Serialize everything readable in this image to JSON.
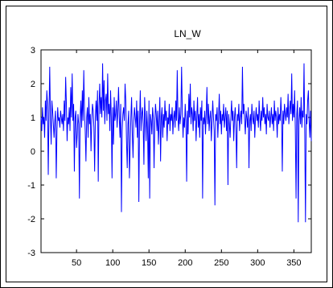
{
  "chart_data": {
    "type": "line",
    "title": "LN_W",
    "xlabel": "",
    "ylabel": "",
    "xlim": [
      1,
      374
    ],
    "ylim": [
      -3,
      3
    ],
    "xticks": [
      50,
      100,
      150,
      200,
      250,
      300,
      350
    ],
    "yticks": [
      3,
      2,
      1,
      0,
      -1,
      -2,
      -3
    ],
    "grid": false,
    "legend": "none",
    "series": [
      {
        "color": "#0000ff",
        "values": [
          1.0,
          0.6,
          1.3,
          0.8,
          1.0,
          0.4,
          1.5,
          0.9,
          1.8,
          1.4,
          -0.7,
          1.1,
          2.5,
          1.0,
          0.2,
          1.5,
          1.2,
          0.8,
          0.4,
          0.9,
          1.2,
          -0.8,
          0.6,
          1.3,
          0.9,
          1.0,
          0.7,
          1.2,
          1.0,
          0.8,
          1.1,
          0.6,
          1.5,
          0.9,
          2.2,
          1.4,
          0.3,
          1.0,
          0.8,
          1.3,
          0.6,
          1.9,
          1.0,
          2.3,
          0.9,
          1.4,
          -0.6,
          1.0,
          1.2,
          0.1,
          0.5,
          1.1,
          0.8,
          -1.4,
          1.0,
          1.5,
          0.7,
          1.8,
          0.9,
          2.4,
          1.2,
          0.6,
          -0.3,
          1.0,
          1.3,
          0.4,
          1.6,
          0.8,
          1.1,
          0.0,
          0.9,
          1.4,
          1.2,
          0.7,
          -0.6,
          1.0,
          1.5,
          0.9,
          1.8,
          -0.9,
          1.3,
          2.0,
          1.1,
          1.6,
          1.0,
          2.6,
          1.2,
          2.1,
          0.8,
          1.5,
          1.7,
          0.9,
          2.3,
          1.1,
          1.4,
          0.6,
          1.8,
          1.0,
          -0.8,
          1.3,
          0.2,
          1.6,
          0.9,
          1.1,
          1.5,
          0.7,
          1.2,
          1.9,
          1.0,
          0.4,
          1.4,
          -1.8,
          0.6,
          1.1,
          1.3,
          0.9,
          2.0,
          1.5,
          0.3,
          -0.5,
          0.8,
          1.2,
          -0.8,
          0.1,
          1.0,
          1.6,
          0.5,
          -0.2,
          0.9,
          1.3,
          1.0,
          0.7,
          1.5,
          0.4,
          1.2,
          -1.5,
          0.9,
          1.8,
          0.6,
          1.1,
          1.3,
          0.8,
          -0.4,
          1.6,
          1.0,
          0.3,
          1.2,
          0.7,
          -0.8,
          1.5,
          -1.4,
          1.1,
          0.9,
          0.5,
          1.3,
          1.0,
          -0.5,
          0.8,
          1.4,
          1.1,
          0.6,
          1.2,
          0.2,
          0.9,
          1.6,
          -0.3,
          1.0,
          1.3,
          0.4,
          1.1,
          0.7,
          1.5,
          0.9,
          1.2,
          0.3,
          1.0,
          0.8,
          1.4,
          0.6,
          1.1,
          0.9,
          1.3,
          0.5,
          1.0,
          1.2,
          0.7,
          1.5,
          0.9,
          2.4,
          1.0,
          0.6,
          1.3,
          0.8,
          1.1,
          2.5,
          1.2,
          0.4,
          1.0,
          0.7,
          1.4,
          0.9,
          -0.9,
          1.2,
          0.5,
          1.7,
          1.0,
          2.0,
          0.8,
          1.3,
          1.1,
          0.6,
          1.5,
          0.9,
          1.2,
          0.3,
          1.0,
          1.6,
          0.7,
          1.1,
          0.4,
          1.3,
          0.9,
          1.5,
          -1.4,
          1.0,
          0.8,
          1.2,
          0.5,
          1.1,
          1.9,
          0.8,
          1.4,
          0.6,
          1.0,
          1.2,
          0.3,
          0.9,
          1.5,
          1.0,
          0.6,
          -1.6,
          1.1,
          0.9,
          1.3,
          0.4,
          1.0,
          1.7,
          0.8,
          1.2,
          0.5,
          1.1,
          0.9,
          1.4,
          0.7,
          1.0,
          1.3,
          0.6,
          1.2,
          -1.0,
          1.1,
          0.8,
          0.4,
          1.0,
          1.5,
          0.9,
          1.2,
          0.3,
          1.0,
          1.3,
          0.7,
          -0.5,
          1.1,
          0.9,
          1.4,
          0.6,
          1.0,
          1.2,
          0.8,
          2.5,
          1.1,
          1.4,
          0.9,
          0.5,
          1.2,
          1.0,
          0.7,
          1.3,
          -0.5,
          0.9,
          1.1,
          0.6,
          1.4,
          1.0,
          0.8,
          1.2,
          0.4,
          1.0,
          1.3,
          0.9,
          1.1,
          0.7,
          1.5,
          1.0,
          0.6,
          1.2,
          0.9,
          1.6,
          1.0,
          1.3,
          0.8,
          1.1,
          0.5,
          1.4,
          1.0,
          0.9,
          1.2,
          0.7,
          1.0,
          1.3,
          0.8,
          1.1,
          0.6,
          1.5,
          0.9,
          1.2,
          1.0,
          0.4,
          1.3,
          0.8,
          1.1,
          0.9,
          1.6,
          1.0,
          -0.6,
          1.2,
          0.8,
          1.4,
          1.1,
          0.9,
          1.3,
          1.0,
          1.7,
          0.8,
          1.2,
          1.5,
          1.1,
          2.3,
          0.9,
          1.4,
          1.0,
          1.8,
          0.6,
          -1.4,
          1.1,
          1.5,
          -2.1,
          0.9,
          1.3,
          0.8,
          1.6,
          0.7,
          1.2,
          1.0,
          2.6,
          0.5,
          -2.1,
          1.1,
          0.8,
          1.5,
          1.8,
          0.9,
          0.4,
          1.2,
          0.3
        ]
      }
    ]
  }
}
